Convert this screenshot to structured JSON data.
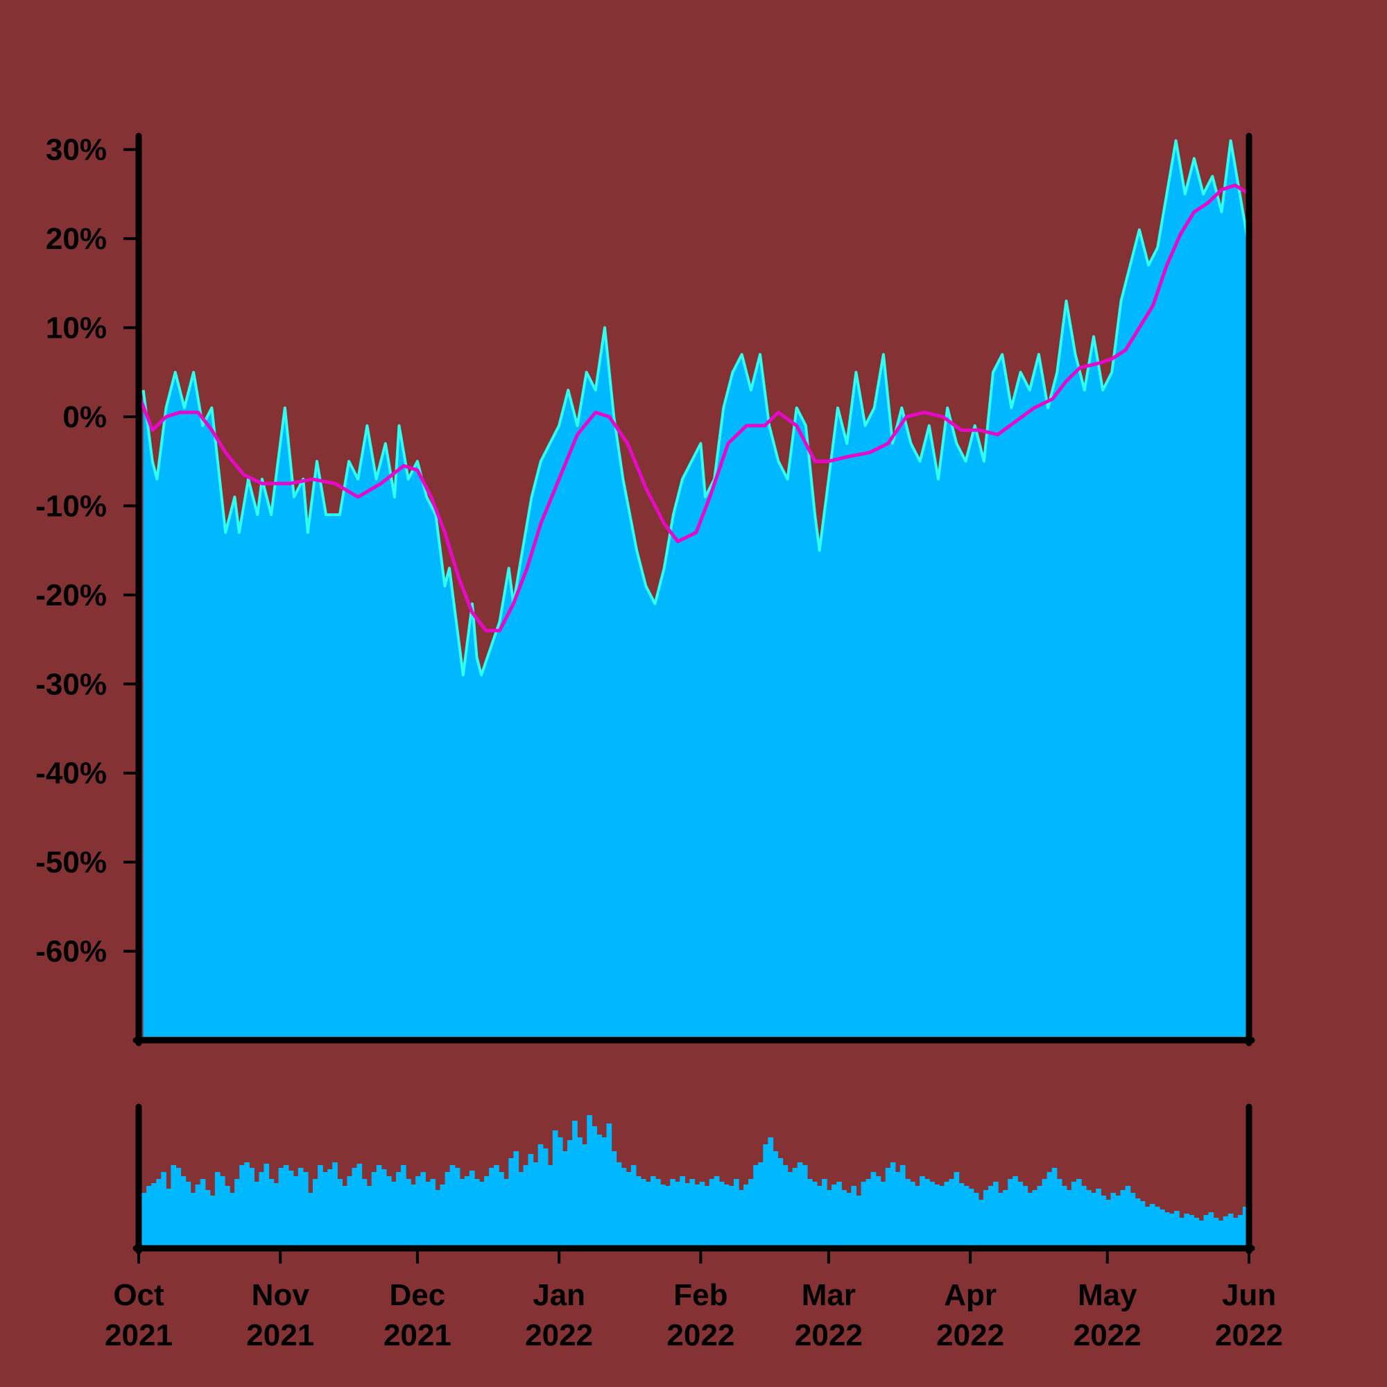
{
  "colors": {
    "background": "#843233",
    "area_fill": "#00B8FF",
    "area_outline": "#2EFFF0",
    "moving_average": "#E60AC8",
    "volume_bars": "#00B8FF",
    "axes": "#000000"
  },
  "chart_data": {
    "type": "area",
    "title": "",
    "xlabel": "",
    "ylabel": "",
    "x_range": [
      "2021-10-01",
      "2022-06-01"
    ],
    "ylim": [
      -70,
      32
    ],
    "y_ticks": [
      30,
      20,
      10,
      0,
      -10,
      -20,
      -30,
      -40,
      -50,
      -60
    ],
    "y_tick_labels": [
      "30%",
      "20%",
      "10%",
      "0%",
      "-10%",
      "-20%",
      "-30%",
      "-40%",
      "-50%",
      "-60%"
    ],
    "x_ticks": [
      {
        "date": "2021-10-01",
        "month": "Oct",
        "year": "2021"
      },
      {
        "date": "2021-11-01",
        "month": "Nov",
        "year": "2021"
      },
      {
        "date": "2021-12-01",
        "month": "Dec",
        "year": "2021"
      },
      {
        "date": "2022-01-01",
        "month": "Jan",
        "year": "2022"
      },
      {
        "date": "2022-02-01",
        "month": "Feb",
        "year": "2022"
      },
      {
        "date": "2022-03-01",
        "month": "Mar",
        "year": "2022"
      },
      {
        "date": "2022-04-01",
        "month": "Apr",
        "year": "2022"
      },
      {
        "date": "2022-05-01",
        "month": "May",
        "year": "2022"
      },
      {
        "date": "2022-06-01",
        "month": "Jun",
        "year": "2022"
      }
    ],
    "grid": false,
    "legend": "none",
    "series": [
      {
        "kind": "area",
        "points": [
          [
            "2021-10-02",
            3
          ],
          [
            "2021-10-04",
            -5
          ],
          [
            "2021-10-05",
            -7
          ],
          [
            "2021-10-07",
            1
          ],
          [
            "2021-10-09",
            5
          ],
          [
            "2021-10-11",
            1
          ],
          [
            "2021-10-13",
            5
          ],
          [
            "2021-10-15",
            -1
          ],
          [
            "2021-10-17",
            1
          ],
          [
            "2021-10-20",
            -13
          ],
          [
            "2021-10-22",
            -9
          ],
          [
            "2021-10-23",
            -13
          ],
          [
            "2021-10-25",
            -7
          ],
          [
            "2021-10-27",
            -11
          ],
          [
            "2021-10-28",
            -7
          ],
          [
            "2021-10-30",
            -11
          ],
          [
            "2021-11-01",
            -3
          ],
          [
            "2021-11-02",
            1
          ],
          [
            "2021-11-04",
            -9
          ],
          [
            "2021-11-06",
            -7
          ],
          [
            "2021-11-07",
            -13
          ],
          [
            "2021-11-09",
            -5
          ],
          [
            "2021-11-11",
            -11
          ],
          [
            "2021-11-14",
            -11
          ],
          [
            "2021-11-16",
            -5
          ],
          [
            "2021-11-18",
            -7
          ],
          [
            "2021-11-20",
            -1
          ],
          [
            "2021-11-22",
            -7
          ],
          [
            "2021-11-24",
            -3
          ],
          [
            "2021-11-26",
            -9
          ],
          [
            "2021-11-27",
            -1
          ],
          [
            "2021-11-29",
            -7
          ],
          [
            "2021-12-01",
            -5
          ],
          [
            "2021-12-03",
            -9
          ],
          [
            "2021-12-05",
            -11
          ],
          [
            "2021-12-07",
            -19
          ],
          [
            "2021-12-08",
            -17
          ],
          [
            "2021-12-10",
            -25
          ],
          [
            "2021-12-11",
            -29
          ],
          [
            "2021-12-13",
            -21
          ],
          [
            "2021-12-14",
            -27
          ],
          [
            "2021-12-15",
            -29
          ],
          [
            "2021-12-19",
            -23
          ],
          [
            "2021-12-21",
            -17
          ],
          [
            "2021-12-22",
            -21
          ],
          [
            "2021-12-24",
            -15
          ],
          [
            "2021-12-26",
            -9
          ],
          [
            "2021-12-28",
            -5
          ],
          [
            "2022-01-01",
            -1
          ],
          [
            "2022-01-03",
            3
          ],
          [
            "2022-01-05",
            -1
          ],
          [
            "2022-01-07",
            5
          ],
          [
            "2022-01-09",
            3
          ],
          [
            "2022-01-11",
            10
          ],
          [
            "2022-01-13",
            0
          ],
          [
            "2022-01-15",
            -7
          ],
          [
            "2022-01-18",
            -15
          ],
          [
            "2022-01-20",
            -19
          ],
          [
            "2022-01-22",
            -21
          ],
          [
            "2022-01-24",
            -17
          ],
          [
            "2022-01-26",
            -11
          ],
          [
            "2022-01-28",
            -7
          ],
          [
            "2022-02-01",
            -3
          ],
          [
            "2022-02-02",
            -9
          ],
          [
            "2022-02-04",
            -7
          ],
          [
            "2022-02-06",
            1
          ],
          [
            "2022-02-08",
            5
          ],
          [
            "2022-02-10",
            7
          ],
          [
            "2022-02-12",
            3
          ],
          [
            "2022-02-14",
            7
          ],
          [
            "2022-02-16",
            -1
          ],
          [
            "2022-02-18",
            -5
          ],
          [
            "2022-02-20",
            -7
          ],
          [
            "2022-02-22",
            1
          ],
          [
            "2022-02-24",
            -1
          ],
          [
            "2022-02-26",
            -11
          ],
          [
            "2022-02-27",
            -15
          ],
          [
            "2022-03-01",
            -7
          ],
          [
            "2022-03-03",
            1
          ],
          [
            "2022-03-05",
            -3
          ],
          [
            "2022-03-07",
            5
          ],
          [
            "2022-03-09",
            -1
          ],
          [
            "2022-03-11",
            1
          ],
          [
            "2022-03-13",
            7
          ],
          [
            "2022-03-15",
            -3
          ],
          [
            "2022-03-17",
            1
          ],
          [
            "2022-03-19",
            -3
          ],
          [
            "2022-03-21",
            -5
          ],
          [
            "2022-03-23",
            -1
          ],
          [
            "2022-03-25",
            -7
          ],
          [
            "2022-03-27",
            1
          ],
          [
            "2022-03-29",
            -3
          ],
          [
            "2022-03-31",
            -5
          ],
          [
            "2022-04-02",
            -1
          ],
          [
            "2022-04-04",
            -5
          ],
          [
            "2022-04-06",
            5
          ],
          [
            "2022-04-08",
            7
          ],
          [
            "2022-04-10",
            1
          ],
          [
            "2022-04-12",
            5
          ],
          [
            "2022-04-14",
            3
          ],
          [
            "2022-04-16",
            7
          ],
          [
            "2022-04-18",
            1
          ],
          [
            "2022-04-20",
            5
          ],
          [
            "2022-04-22",
            13
          ],
          [
            "2022-04-24",
            7
          ],
          [
            "2022-04-26",
            3
          ],
          [
            "2022-04-28",
            9
          ],
          [
            "2022-04-30",
            3
          ],
          [
            "2022-05-02",
            5
          ],
          [
            "2022-05-04",
            13
          ],
          [
            "2022-05-06",
            17
          ],
          [
            "2022-05-08",
            21
          ],
          [
            "2022-05-10",
            17
          ],
          [
            "2022-05-12",
            19
          ],
          [
            "2022-05-14",
            25
          ],
          [
            "2022-05-16",
            31
          ],
          [
            "2022-05-18",
            25
          ],
          [
            "2022-05-20",
            29
          ],
          [
            "2022-05-22",
            25
          ],
          [
            "2022-05-24",
            27
          ],
          [
            "2022-05-26",
            23
          ],
          [
            "2022-05-28",
            31
          ],
          [
            "2022-05-30",
            25
          ],
          [
            "2022-06-01",
            19
          ]
        ]
      },
      {
        "kind": "moving_average",
        "points": [
          [
            "2021-10-01",
            2.5
          ],
          [
            "2021-10-04",
            -1.5
          ],
          [
            "2021-10-07",
            0
          ],
          [
            "2021-10-10",
            0.5
          ],
          [
            "2021-10-14",
            0.5
          ],
          [
            "2021-10-17",
            -1.5
          ],
          [
            "2021-10-20",
            -4
          ],
          [
            "2021-10-24",
            -6.5
          ],
          [
            "2021-10-28",
            -7.5
          ],
          [
            "2021-11-03",
            -7.5
          ],
          [
            "2021-11-08",
            -7
          ],
          [
            "2021-11-13",
            -7.5
          ],
          [
            "2021-11-18",
            -9
          ],
          [
            "2021-11-23",
            -7.5
          ],
          [
            "2021-11-28",
            -5.5
          ],
          [
            "2021-12-01",
            -6
          ],
          [
            "2021-12-04",
            -9
          ],
          [
            "2021-12-07",
            -13
          ],
          [
            "2021-12-10",
            -18
          ],
          [
            "2021-12-13",
            -22
          ],
          [
            "2021-12-16",
            -24
          ],
          [
            "2021-12-19",
            -24
          ],
          [
            "2021-12-22",
            -21
          ],
          [
            "2021-12-25",
            -17
          ],
          [
            "2021-12-28",
            -12
          ],
          [
            "2022-01-01",
            -7
          ],
          [
            "2022-01-05",
            -2
          ],
          [
            "2022-01-09",
            0.5
          ],
          [
            "2022-01-12",
            0
          ],
          [
            "2022-01-16",
            -3
          ],
          [
            "2022-01-20",
            -8
          ],
          [
            "2022-01-24",
            -12
          ],
          [
            "2022-01-27",
            -14
          ],
          [
            "2022-01-31",
            -13
          ],
          [
            "2022-02-03",
            -9
          ],
          [
            "2022-02-07",
            -3
          ],
          [
            "2022-02-11",
            -1
          ],
          [
            "2022-02-15",
            -1
          ],
          [
            "2022-02-18",
            0.5
          ],
          [
            "2022-02-22",
            -1
          ],
          [
            "2022-02-26",
            -5
          ],
          [
            "2022-03-01",
            -5
          ],
          [
            "2022-03-05",
            -4.5
          ],
          [
            "2022-03-10",
            -4
          ],
          [
            "2022-03-14",
            -3
          ],
          [
            "2022-03-18",
            0
          ],
          [
            "2022-03-22",
            0.5
          ],
          [
            "2022-03-26",
            0
          ],
          [
            "2022-03-30",
            -1.5
          ],
          [
            "2022-04-03",
            -1.5
          ],
          [
            "2022-04-07",
            -2
          ],
          [
            "2022-04-11",
            -0.5
          ],
          [
            "2022-04-15",
            1
          ],
          [
            "2022-04-19",
            2
          ],
          [
            "2022-04-22",
            4
          ],
          [
            "2022-04-25",
            5.5
          ],
          [
            "2022-04-29",
            6
          ],
          [
            "2022-05-02",
            6.5
          ],
          [
            "2022-05-05",
            7.5
          ],
          [
            "2022-05-08",
            10
          ],
          [
            "2022-05-11",
            12.5
          ],
          [
            "2022-05-14",
            17
          ],
          [
            "2022-05-17",
            20.5
          ],
          [
            "2022-05-20",
            23
          ],
          [
            "2022-05-23",
            24
          ],
          [
            "2022-05-26",
            25.5
          ],
          [
            "2022-05-29",
            26
          ],
          [
            "2022-06-01",
            25
          ]
        ]
      },
      {
        "kind": "volume",
        "values": [
          0.4,
          0.45,
          0.47,
          0.5,
          0.55,
          0.43,
          0.6,
          0.58,
          0.52,
          0.48,
          0.4,
          0.46,
          0.5,
          0.42,
          0.38,
          0.55,
          0.52,
          0.45,
          0.4,
          0.5,
          0.6,
          0.62,
          0.58,
          0.48,
          0.55,
          0.61,
          0.5,
          0.47,
          0.58,
          0.6,
          0.56,
          0.52,
          0.58,
          0.55,
          0.4,
          0.5,
          0.6,
          0.55,
          0.57,
          0.62,
          0.5,
          0.45,
          0.52,
          0.58,
          0.61,
          0.5,
          0.45,
          0.55,
          0.6,
          0.57,
          0.52,
          0.48,
          0.55,
          0.6,
          0.5,
          0.46,
          0.52,
          0.55,
          0.48,
          0.5,
          0.42,
          0.46,
          0.55,
          0.6,
          0.58,
          0.5,
          0.52,
          0.56,
          0.5,
          0.48,
          0.52,
          0.58,
          0.6,
          0.55,
          0.5,
          0.65,
          0.7,
          0.55,
          0.6,
          0.68,
          0.62,
          0.75,
          0.72,
          0.6,
          0.85,
          0.8,
          0.7,
          0.78,
          0.92,
          0.8,
          0.75,
          0.96,
          0.88,
          0.82,
          0.8,
          0.9,
          0.7,
          0.62,
          0.58,
          0.55,
          0.6,
          0.52,
          0.5,
          0.48,
          0.52,
          0.5,
          0.46,
          0.45,
          0.5,
          0.48,
          0.52,
          0.47,
          0.5,
          0.46,
          0.48,
          0.45,
          0.5,
          0.52,
          0.48,
          0.46,
          0.45,
          0.5,
          0.42,
          0.46,
          0.5,
          0.6,
          0.62,
          0.75,
          0.8,
          0.7,
          0.65,
          0.6,
          0.55,
          0.58,
          0.62,
          0.6,
          0.5,
          0.48,
          0.45,
          0.5,
          0.42,
          0.46,
          0.48,
          0.42,
          0.4,
          0.45,
          0.38,
          0.48,
          0.5,
          0.55,
          0.52,
          0.48,
          0.58,
          0.62,
          0.55,
          0.6,
          0.5,
          0.48,
          0.45,
          0.52,
          0.5,
          0.48,
          0.46,
          0.45,
          0.48,
          0.5,
          0.55,
          0.47,
          0.45,
          0.43,
          0.4,
          0.35,
          0.42,
          0.45,
          0.48,
          0.4,
          0.42,
          0.5,
          0.52,
          0.48,
          0.45,
          0.4,
          0.42,
          0.45,
          0.5,
          0.55,
          0.58,
          0.5,
          0.45,
          0.42,
          0.48,
          0.5,
          0.45,
          0.42,
          0.4,
          0.43,
          0.38,
          0.35,
          0.4,
          0.38,
          0.42,
          0.45,
          0.4,
          0.36,
          0.34,
          0.3,
          0.32,
          0.3,
          0.28,
          0.26,
          0.25,
          0.27,
          0.22,
          0.25,
          0.24,
          0.22,
          0.2,
          0.24,
          0.26,
          0.22,
          0.2,
          0.23,
          0.25,
          0.22,
          0.24,
          0.3
        ]
      }
    ]
  }
}
